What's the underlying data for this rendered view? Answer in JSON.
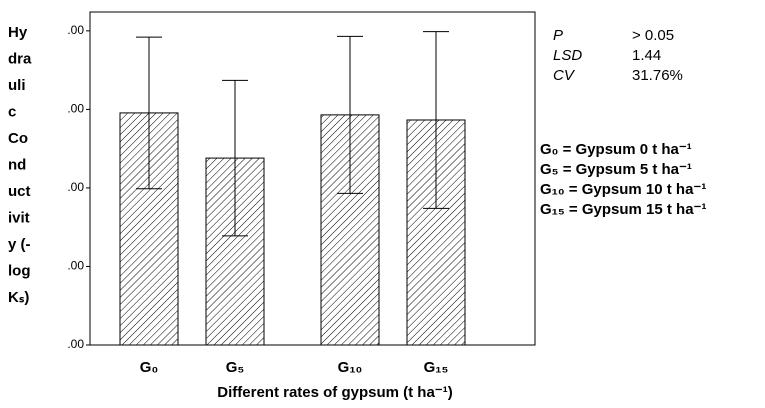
{
  "chart_data": {
    "type": "bar",
    "categories": [
      "G₀",
      "G₅",
      "G₁₀",
      "G₁₅"
    ],
    "values": [
      5.91,
      4.76,
      5.86,
      5.73
    ],
    "errors": [
      1.93,
      1.98,
      2.0,
      2.25
    ],
    "color": "#000000",
    "ylim": [
      0,
      8.48
    ],
    "yticks": [
      {
        "value": 0,
        "label": ".00"
      },
      {
        "value": 2,
        "label": ".00"
      },
      {
        "value": 4,
        "label": ".00"
      },
      {
        "value": 6,
        "label": ".00"
      },
      {
        "value": 8,
        "label": ".00"
      }
    ],
    "x_label": "Different rates of gypsum (t ha⁻¹)",
    "y_label_lines": [
      "Hy",
      "dra",
      "uli",
      "c",
      "Co",
      "nd",
      "uct",
      "ivit",
      "y (-",
      "log",
      "Kₛ)"
    ],
    "statistics": [
      {
        "label": "P",
        "value": "> 0.05"
      },
      {
        "label": "LSD",
        "value": "1.44"
      },
      {
        "label": "CV",
        "value": "31.76%"
      }
    ],
    "legend_notes": [
      "G₀ = Gypsum 0 t ha⁻¹",
      "G₅ = Gypsum 5 t ha⁻¹",
      "G₁₀ = Gypsum 10 t ha⁻¹",
      "G₁₅ = Gypsum 15 t ha⁻¹"
    ],
    "grid": false
  }
}
